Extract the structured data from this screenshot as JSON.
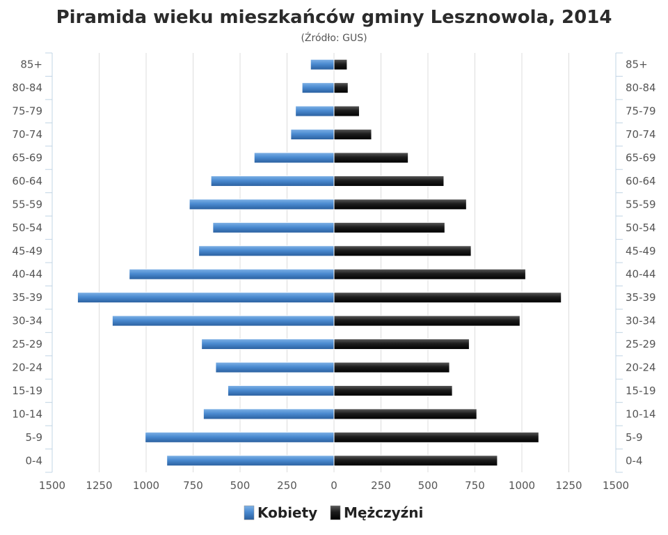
{
  "chart_data": {
    "type": "bar",
    "title": "Piramida wieku mieszkańców gminy Lesznowola, 2014",
    "subtitle": "(Źródło: GUS)",
    "categories": [
      "85+",
      "80-84",
      "75-79",
      "70-74",
      "65-69",
      "60-64",
      "55-59",
      "50-54",
      "45-49",
      "40-44",
      "35-39",
      "30-34",
      "25-29",
      "20-24",
      "15-19",
      "10-14",
      "5-9",
      "0-4"
    ],
    "series": [
      {
        "name": "Kobiety",
        "values": [
          125,
          170,
          205,
          230,
          425,
          655,
          770,
          645,
          720,
          1090,
          1365,
          1180,
          705,
          630,
          565,
          695,
          1005,
          890
        ]
      },
      {
        "name": "Mężczyźni",
        "values": [
          70,
          75,
          135,
          200,
          395,
          585,
          705,
          590,
          730,
          1020,
          1210,
          990,
          720,
          615,
          630,
          760,
          1090,
          870
        ]
      }
    ],
    "xlim": [
      -1500,
      1500
    ],
    "xticks": [
      -1500,
      -1250,
      -1000,
      -750,
      -500,
      -250,
      0,
      250,
      500,
      750,
      1000,
      1250,
      1500
    ],
    "xtick_labels": [
      "1500",
      "1250",
      "1000",
      "750",
      "500",
      "250",
      "0",
      "250",
      "500",
      "750",
      "1000",
      "1250",
      "1500"
    ],
    "grid": true,
    "legend_position": "bottom-center",
    "colors": {
      "Kobiety": "#3d7cc4",
      "Mężczyźni": "#161616"
    }
  }
}
